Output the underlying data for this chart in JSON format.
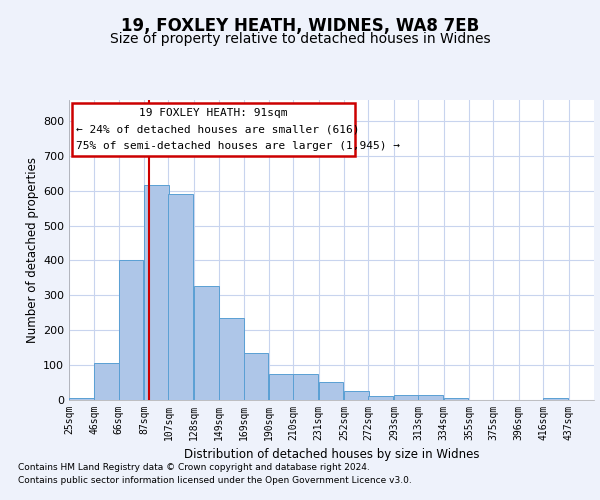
{
  "title1": "19, FOXLEY HEATH, WIDNES, WA8 7EB",
  "title2": "Size of property relative to detached houses in Widnes",
  "xlabel": "Distribution of detached houses by size in Widnes",
  "ylabel": "Number of detached properties",
  "footer1": "Contains HM Land Registry data © Crown copyright and database right 2024.",
  "footer2": "Contains public sector information licensed under the Open Government Licence v3.0.",
  "annotation_line1": "19 FOXLEY HEATH: 91sqm",
  "annotation_line2": "← 24% of detached houses are smaller (616)",
  "annotation_line3": "75% of semi-detached houses are larger (1,945) →",
  "bar_color": "#aec6e8",
  "bar_edge_color": "#5a9fd4",
  "vline_color": "#cc0000",
  "vline_x": 91,
  "categories": [
    "25sqm",
    "46sqm",
    "66sqm",
    "87sqm",
    "107sqm",
    "128sqm",
    "149sqm",
    "169sqm",
    "190sqm",
    "210sqm",
    "231sqm",
    "252sqm",
    "272sqm",
    "293sqm",
    "313sqm",
    "334sqm",
    "355sqm",
    "375sqm",
    "396sqm",
    "416sqm",
    "437sqm"
  ],
  "bin_starts": [
    25,
    46,
    66,
    87,
    107,
    128,
    149,
    169,
    190,
    210,
    231,
    252,
    272,
    293,
    313,
    334,
    355,
    375,
    396,
    416,
    437
  ],
  "bin_width": 21,
  "values": [
    5,
    105,
    400,
    615,
    590,
    328,
    235,
    135,
    75,
    75,
    52,
    25,
    12,
    15,
    15,
    5,
    0,
    0,
    0,
    5,
    0
  ],
  "ylim": [
    0,
    860
  ],
  "yticks": [
    0,
    100,
    200,
    300,
    400,
    500,
    600,
    700,
    800
  ],
  "bg_color": "#eef2fb",
  "plot_bg_color": "#ffffff",
  "grid_color": "#c8d4ee",
  "title1_fontsize": 12,
  "title2_fontsize": 10
}
